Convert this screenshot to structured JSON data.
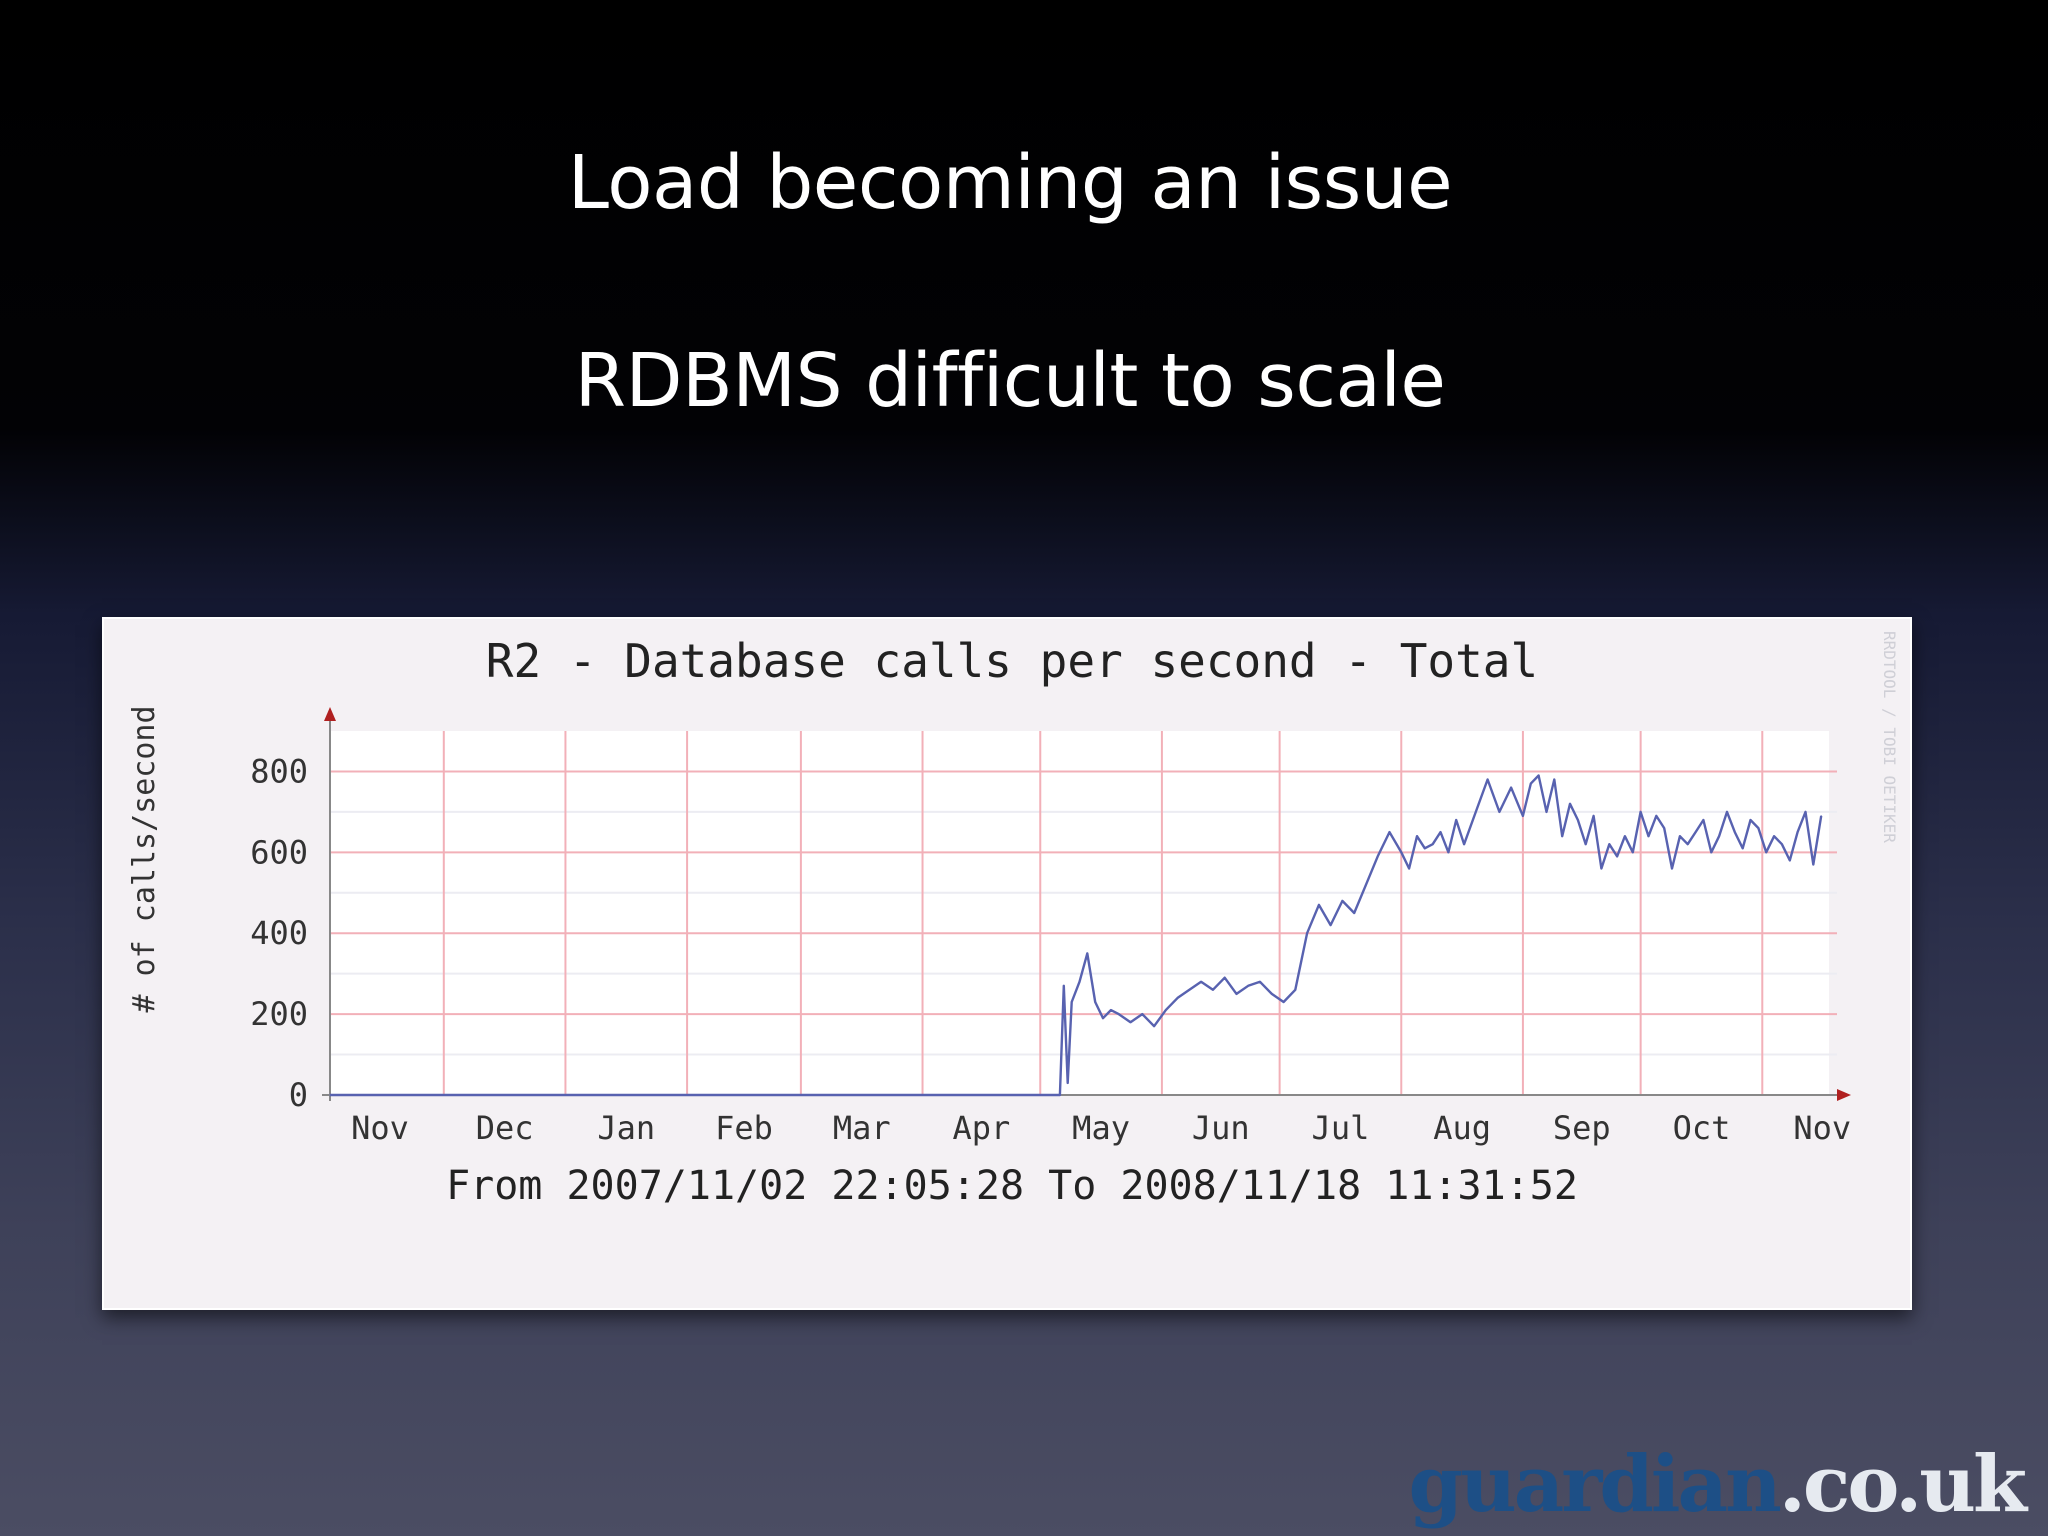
{
  "slide": {
    "title_line1": "Load becoming an issue",
    "title_line2": "RDBMS difficult to scale"
  },
  "logo": {
    "part1": "guardian",
    "part2": ".co.uk"
  },
  "chart_data": {
    "type": "line",
    "title": "R2 - Database calls per second - Total",
    "ylabel": "# of calls/second",
    "xlabel": "",
    "ylim": [
      0,
      900
    ],
    "yticks": [
      0,
      200,
      400,
      600,
      800
    ],
    "xticks": [
      "Nov",
      "Dec",
      "Jan",
      "Feb",
      "Mar",
      "Apr",
      "May",
      "Jun",
      "Jul",
      "Aug",
      "Sep",
      "Oct",
      "Nov"
    ],
    "x_range": [
      "2007-11-02",
      "2008-11-18"
    ],
    "footer": "From 2007/11/02 22:05:28 To 2008/11/18 11:31:52",
    "watermark": "RRDTOOL / TOBI OETIKER",
    "grid": true,
    "colors": {
      "line": "#5862b0",
      "grid_major": "#f2b0b8",
      "grid_minor": "#ececf2",
      "axis": "#888888",
      "arrow": "#b02020"
    },
    "series": [
      {
        "x": [
          "2007-11-02",
          "2007-12-01",
          "2008-01-01",
          "2008-02-01",
          "2008-03-01",
          "2008-04-01",
          "2008-05-01",
          "2008-05-06",
          "2008-05-07",
          "2008-05-08",
          "2008-05-09",
          "2008-05-11",
          "2008-05-13",
          "2008-05-15",
          "2008-05-17",
          "2008-05-19",
          "2008-05-21",
          "2008-05-24",
          "2008-05-27",
          "2008-05-30",
          "2008-06-02",
          "2008-06-05",
          "2008-06-08",
          "2008-06-11",
          "2008-06-14",
          "2008-06-17",
          "2008-06-20",
          "2008-06-23",
          "2008-06-26",
          "2008-06-29",
          "2008-07-02",
          "2008-07-05",
          "2008-07-08",
          "2008-07-11",
          "2008-07-14",
          "2008-07-17",
          "2008-07-20",
          "2008-07-23",
          "2008-07-26",
          "2008-07-29",
          "2008-08-01",
          "2008-08-03",
          "2008-08-05",
          "2008-08-07",
          "2008-08-09",
          "2008-08-11",
          "2008-08-13",
          "2008-08-15",
          "2008-08-17",
          "2008-08-20",
          "2008-08-23",
          "2008-08-26",
          "2008-08-29",
          "2008-09-01",
          "2008-09-03",
          "2008-09-05",
          "2008-09-07",
          "2008-09-09",
          "2008-09-11",
          "2008-09-13",
          "2008-09-15",
          "2008-09-17",
          "2008-09-19",
          "2008-09-21",
          "2008-09-23",
          "2008-09-25",
          "2008-09-27",
          "2008-09-29",
          "2008-10-01",
          "2008-10-03",
          "2008-10-05",
          "2008-10-07",
          "2008-10-09",
          "2008-10-11",
          "2008-10-13",
          "2008-10-15",
          "2008-10-17",
          "2008-10-19",
          "2008-10-21",
          "2008-10-23",
          "2008-10-25",
          "2008-10-27",
          "2008-10-29",
          "2008-10-31",
          "2008-11-02",
          "2008-11-04",
          "2008-11-06",
          "2008-11-08",
          "2008-11-10",
          "2008-11-12",
          "2008-11-14",
          "2008-11-16"
        ],
        "values": [
          0,
          0,
          0,
          0,
          0,
          0,
          0,
          0,
          270,
          30,
          230,
          280,
          350,
          230,
          190,
          210,
          200,
          180,
          200,
          170,
          210,
          240,
          260,
          280,
          260,
          290,
          250,
          270,
          280,
          250,
          230,
          260,
          400,
          470,
          420,
          480,
          450,
          520,
          590,
          650,
          600,
          560,
          640,
          610,
          620,
          650,
          600,
          680,
          620,
          700,
          780,
          700,
          760,
          690,
          770,
          790,
          700,
          780,
          640,
          720,
          680,
          620,
          690,
          560,
          620,
          590,
          640,
          600,
          700,
          640,
          690,
          660,
          560,
          640,
          620,
          650,
          680,
          600,
          640,
          700,
          650,
          610,
          680,
          660,
          600,
          640,
          620,
          580,
          650,
          700,
          570,
          690
        ]
      }
    ]
  }
}
